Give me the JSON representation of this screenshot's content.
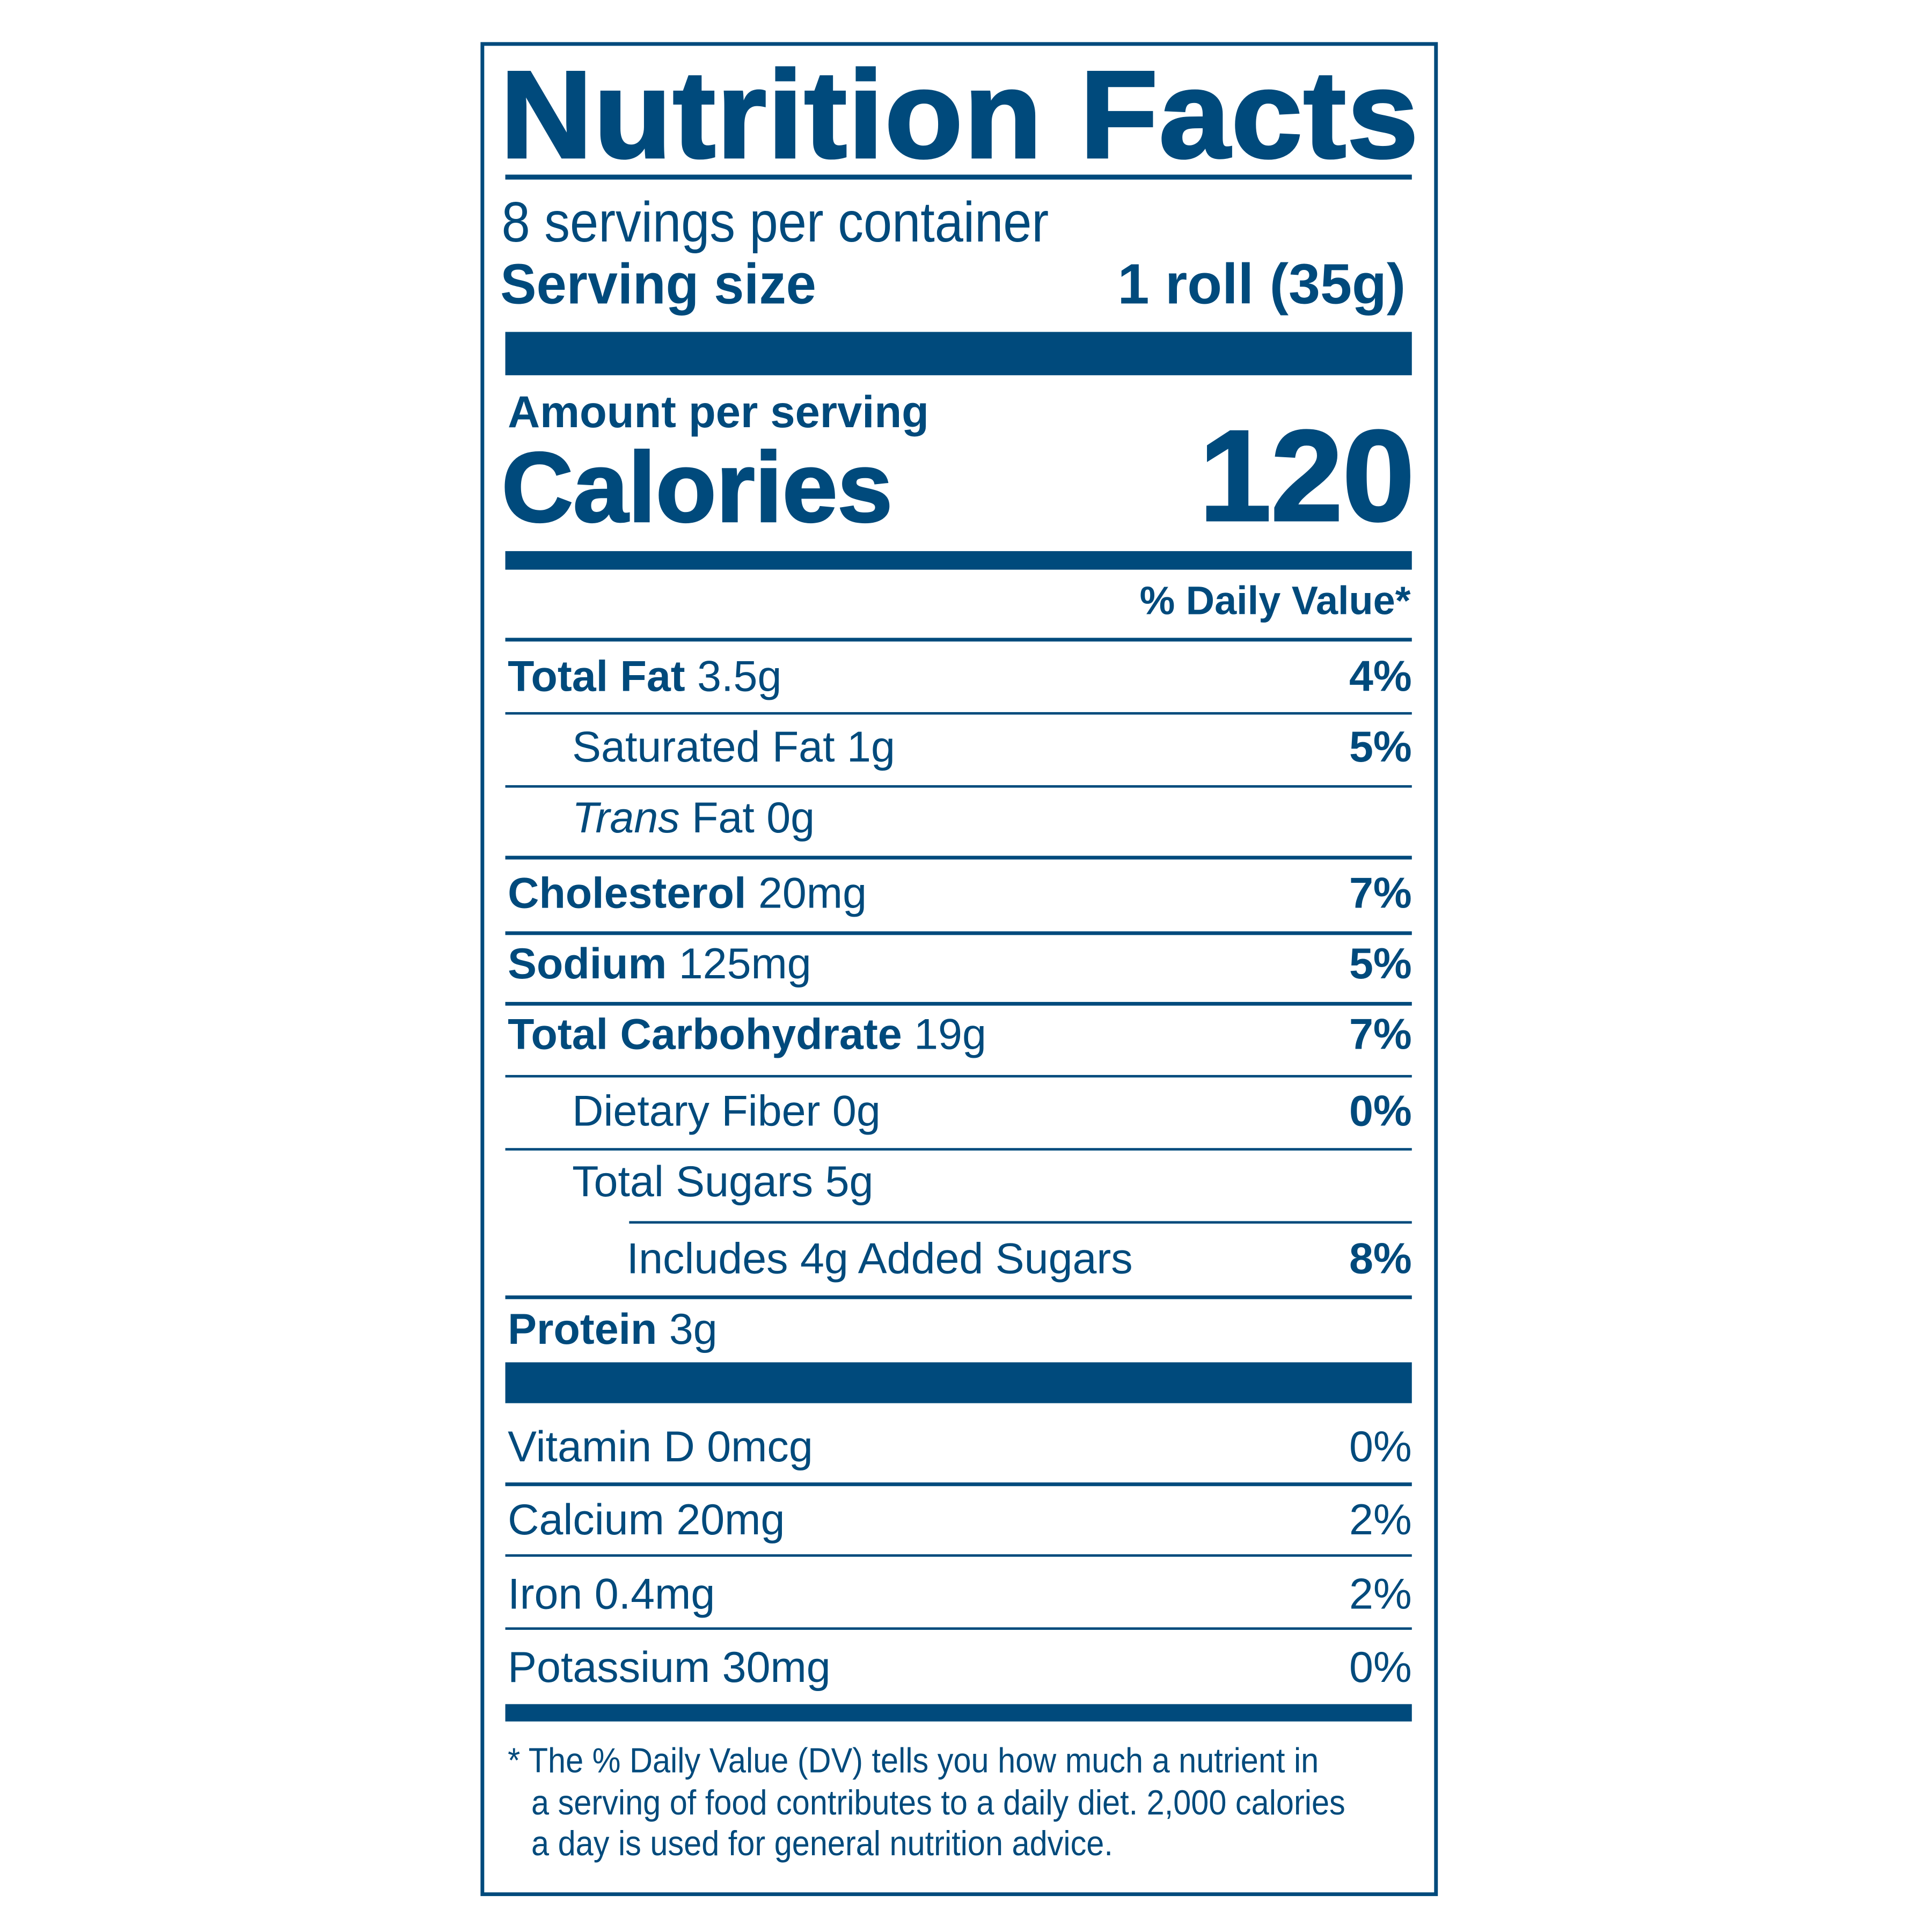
{
  "title": "Nutrition Facts",
  "servings_per_container": "8 servings per container",
  "serving_size_label": "Serving size",
  "serving_size_value": "1 roll (35g)",
  "amount_per_serving": "Amount per serving",
  "calories_label": "Calories",
  "calories_value": "120",
  "daily_value_header": "% Daily Value*",
  "nutrients": [
    {
      "name": "Total Fat",
      "amount": "3.5g",
      "dv": "4%"
    },
    {
      "name": "Saturated Fat",
      "amount": "1g",
      "dv": "5%"
    },
    {
      "name": "Trans",
      "amount": "Fat 0g",
      "dv": ""
    },
    {
      "name": "Cholesterol",
      "amount": "20mg",
      "dv": "7%"
    },
    {
      "name": "Sodium",
      "amount": "125mg",
      "dv": "5%"
    },
    {
      "name": "Total Carbohydrate",
      "amount": "19g",
      "dv": "7%"
    },
    {
      "name": "Dietary Fiber",
      "amount": "0g",
      "dv": "0%"
    },
    {
      "name": "Total Sugars",
      "amount": "5g",
      "dv": ""
    },
    {
      "name": "Includes 4g Added Sugars",
      "amount": "",
      "dv": "8%"
    },
    {
      "name": "Protein",
      "amount": "3g",
      "dv": ""
    }
  ],
  "vitamins": [
    {
      "label": "Vitamin D 0mcg",
      "dv": "0%"
    },
    {
      "label": "Calcium 20mg",
      "dv": "2%"
    },
    {
      "label": "Iron 0.4mg",
      "dv": "2%"
    },
    {
      "label": "Potassium 30mg",
      "dv": "0%"
    }
  ],
  "footnote": {
    "line1": "* The % Daily Value (DV) tells you how much a nutrient in",
    "line2": "a serving of food contributes to a daily diet. 2,000 calories",
    "line3": "a day is used for general nutrition advice."
  },
  "colors": {
    "ink": "#004a7c",
    "background": "#ffffff"
  }
}
